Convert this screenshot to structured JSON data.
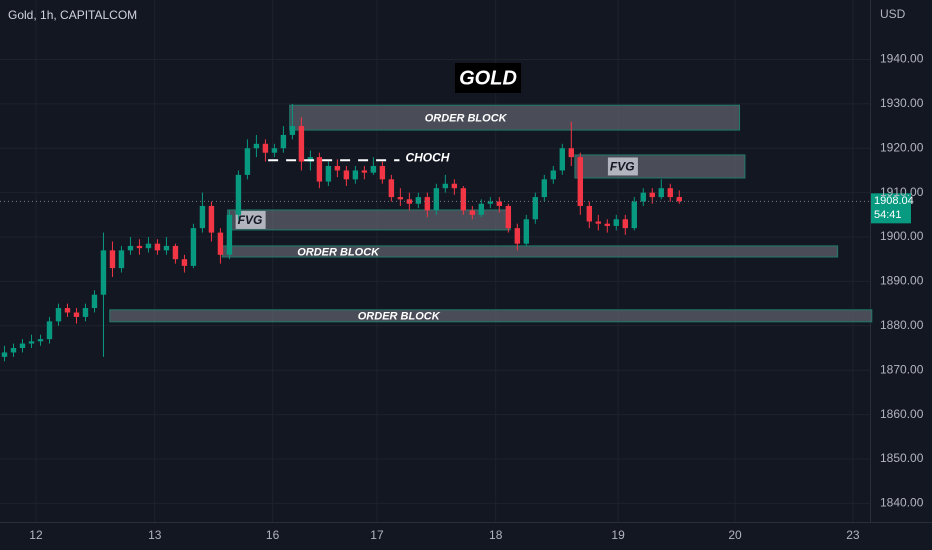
{
  "chart_data": {
    "type": "candlestick",
    "title": "GOLD",
    "symbol": "Gold, 1h, CAPITALCOM",
    "currency": "USD",
    "x": [
      0,
      1,
      2,
      3,
      4,
      5,
      6,
      7,
      8,
      9,
      10,
      11,
      12,
      13,
      14,
      15,
      16,
      17,
      18,
      19,
      20,
      21,
      22,
      23,
      24,
      25,
      26,
      27,
      28,
      29,
      30,
      31,
      32,
      33,
      34,
      35,
      36,
      37,
      38,
      39,
      40,
      41,
      42,
      43,
      44,
      45,
      46,
      47,
      48,
      49,
      50,
      51,
      52,
      53,
      54,
      55,
      56,
      57,
      58,
      59,
      60,
      61,
      62,
      63,
      64,
      65,
      66,
      67,
      68,
      69,
      70,
      71,
      72,
      73,
      74,
      75
    ],
    "open": [
      1873,
      1874,
      1875,
      1876,
      1876.5,
      1877,
      1881,
      1884,
      1883,
      1882,
      1884,
      1887,
      1897,
      1893,
      1897,
      1898,
      1897.5,
      1898.5,
      1897,
      1898,
      1895,
      1893.5,
      1902,
      1907,
      1901,
      1896,
      1905,
      1914,
      1920,
      1921,
      1919,
      1920,
      1923,
      1925,
      1917,
      1918,
      1912.5,
      1916,
      1915,
      1913,
      1915,
      1914.5,
      1916,
      1913,
      1909,
      1908.5,
      1907.5,
      1909,
      1906,
      1911,
      1912,
      1911,
      1906,
      1905,
      1907.5,
      1908,
      1907,
      1902,
      1898.5,
      1904,
      1909,
      1913,
      1915,
      1920,
      1918,
      1907,
      1903.5,
      1903,
      1902.5,
      1904,
      1902,
      1908,
      1910,
      1909,
      1911,
      1909
    ],
    "high": [
      1875.5,
      1876,
      1877,
      1878,
      1878,
      1882,
      1885,
      1885,
      1884,
      1885,
      1888,
      1901,
      1899,
      1898,
      1900,
      1899.5,
      1900,
      1899.5,
      1900,
      1898.5,
      1896,
      1903,
      1910,
      1908,
      1902,
      1906,
      1915,
      1922,
      1923,
      1922,
      1921,
      1925,
      1930,
      1927,
      1919.5,
      1919,
      1917,
      1917.5,
      1916,
      1916,
      1916,
      1918,
      1917,
      1914,
      1911,
      1910,
      1910,
      1910,
      1912,
      1914,
      1913,
      1911.5,
      1907,
      1908.5,
      1909,
      1909,
      1907.5,
      1903,
      1905,
      1910,
      1914,
      1916,
      1921,
      1926,
      1919,
      1908,
      1905,
      1904,
      1905,
      1905,
      1909,
      1911,
      1911,
      1913,
      1912,
      1910.5
    ],
    "low": [
      1872,
      1873,
      1874,
      1875,
      1875.5,
      1876,
      1880,
      1882,
      1880.5,
      1881,
      1883,
      1873,
      1891,
      1892,
      1896,
      1896,
      1896.5,
      1896,
      1896,
      1894,
      1892,
      1893,
      1901,
      1899,
      1894,
      1895,
      1904,
      1913,
      1918,
      1917,
      1918,
      1919,
      1922,
      1915,
      1915,
      1911,
      1911.5,
      1913.5,
      1911.5,
      1912,
      1913,
      1914,
      1912,
      1908,
      1907,
      1906,
      1906.5,
      1904.5,
      1905,
      1910,
      1909.5,
      1905,
      1904,
      1904.5,
      1906.5,
      1905.5,
      1901,
      1897,
      1898,
      1903,
      1908,
      1912,
      1914,
      1916,
      1905,
      1902,
      1901.5,
      1901,
      1901.5,
      1900.5,
      1901.5,
      1907,
      1907.5,
      1908.5,
      1908,
      1907.5
    ],
    "close": [
      1874,
      1875,
      1876,
      1876.5,
      1877,
      1881,
      1884,
      1883,
      1882,
      1884,
      1887,
      1897,
      1893,
      1897,
      1898,
      1897.5,
      1898.5,
      1897,
      1898,
      1895,
      1893.5,
      1902,
      1907,
      1901,
      1896,
      1905,
      1914,
      1920,
      1921,
      1919,
      1920,
      1923,
      1925,
      1917,
      1918,
      1912.5,
      1916,
      1915,
      1913,
      1915,
      1914.5,
      1916,
      1913,
      1909,
      1908.5,
      1907.5,
      1909,
      1906,
      1911,
      1912,
      1911,
      1906,
      1905,
      1907.5,
      1908,
      1907,
      1902,
      1898.5,
      1904,
      1909,
      1913,
      1915,
      1920,
      1918,
      1907,
      1903.5,
      1903,
      1902.5,
      1904,
      1902,
      1908,
      1910,
      1909,
      1911,
      1909,
      1908.04
    ],
    "up_color": "#089981",
    "down_color": "#f23645",
    "xlim": [
      -0.5,
      96.2
    ],
    "ylim": [
      1835.8,
      1953.4
    ],
    "xticks": [
      {
        "value": 3.5,
        "label": "12"
      },
      {
        "value": 16.7,
        "label": "13"
      },
      {
        "value": 29.8,
        "label": "16"
      },
      {
        "value": 41.4,
        "label": "17"
      },
      {
        "value": 54.6,
        "label": "18"
      },
      {
        "value": 68.2,
        "label": "19"
      },
      {
        "value": 81.2,
        "label": "20"
      },
      {
        "value": 94.3,
        "label": "23"
      }
    ],
    "yticks": [
      {
        "value": 1840,
        "label": "1840.00"
      },
      {
        "value": 1850,
        "label": "1850.00"
      },
      {
        "value": 1860,
        "label": "1860.00"
      },
      {
        "value": 1870,
        "label": "1870.00"
      },
      {
        "value": 1880,
        "label": "1880.00"
      },
      {
        "value": 1890,
        "label": "1890.00"
      },
      {
        "value": 1900,
        "label": "1900.00"
      },
      {
        "value": 1910,
        "label": "1910.00"
      },
      {
        "value": 1920,
        "label": "1920.00"
      },
      {
        "value": 1930,
        "label": "1930.00"
      },
      {
        "value": 1940,
        "label": "1940.00"
      }
    ],
    "grid": true,
    "last_price": 1908.04,
    "countdown": "54:41",
    "zones": [
      {
        "label": "ORDER BLOCK",
        "x": [
          31.7,
          81.7
        ],
        "y": [
          1924.1,
          1929.7
        ]
      },
      {
        "label": "FVG",
        "x": [
          63.4,
          82.3
        ],
        "y": [
          1913.3,
          1918.5
        ]
      },
      {
        "label": "FVG",
        "x": [
          24.8,
          56.2
        ],
        "y": [
          1901.6,
          1906.1
        ]
      },
      {
        "label": "ORDER BLOCK",
        "x": [
          24.2,
          92.6
        ],
        "y": [
          1895.5,
          1898
        ]
      },
      {
        "label": "ORDER BLOCK",
        "x": [
          11.7,
          96.4
        ],
        "y": [
          1880.9,
          1883.6
        ]
      }
    ],
    "choch": {
      "label": "CHOCH",
      "value": 1917.3,
      "x": [
        29.3,
        43.9
      ]
    }
  }
}
